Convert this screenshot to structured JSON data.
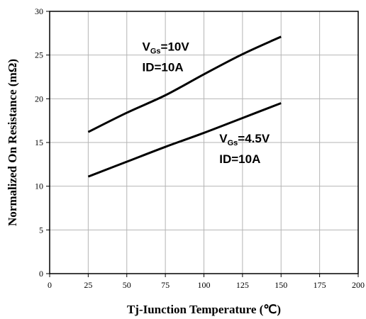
{
  "chart_data": {
    "type": "line",
    "xlabel": "Tj-Iunction Temperature (℃)",
    "ylabel": "Normalized On Resistance (mΩ)",
    "xlim": [
      0,
      200
    ],
    "ylim": [
      0,
      30
    ],
    "xticks": [
      0,
      25,
      50,
      75,
      100,
      125,
      150,
      175,
      200
    ],
    "yticks": [
      0,
      5,
      10,
      15,
      20,
      25,
      30
    ],
    "grid": true,
    "series": [
      {
        "x": [
          25,
          50,
          75,
          100,
          125,
          150
        ],
        "values": [
          16.2,
          18.4,
          20.4,
          22.8,
          25.1,
          27.1
        ]
      },
      {
        "x": [
          25,
          50,
          75,
          100,
          125,
          150
        ],
        "values": [
          11.1,
          12.8,
          14.5,
          16.1,
          17.8,
          19.5
        ]
      }
    ],
    "annotations": [
      {
        "v_main": "V",
        "v_sub": "Gs",
        "v_rest": "=10V",
        "line2": "ID=10A",
        "x": 60,
        "y": 25.5
      },
      {
        "v_main": "V",
        "v_sub": "Gs",
        "v_rest": "=4.5V",
        "line2": "ID=10A",
        "x": 110,
        "y": 15.0
      }
    ]
  }
}
